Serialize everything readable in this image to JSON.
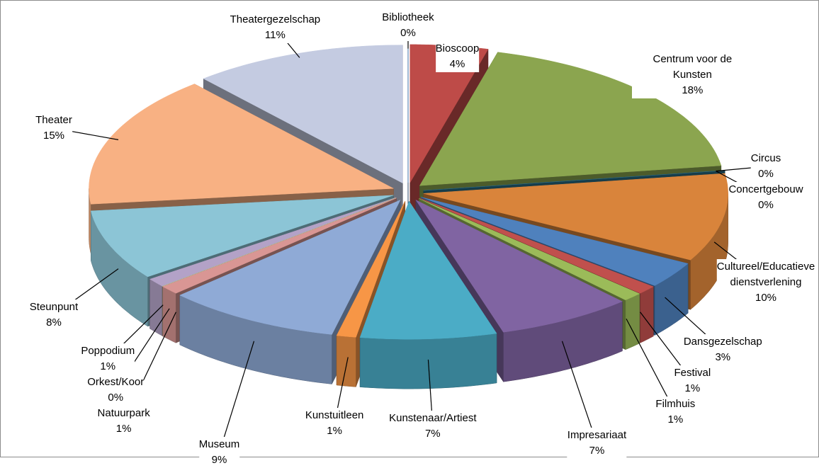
{
  "chart_data": {
    "type": "pie",
    "categories": [
      "Bibliotheek",
      "Bioscoop",
      "Centrum voor de Kunsten",
      "Circus",
      "Concertgebouw",
      "Cultureel/Educatieve dienstverlening",
      "Dansgezelschap",
      "Festival",
      "Filmhuis",
      "Impresariaat",
      "Kunstenaar/Artiest",
      "Kunstuitleen",
      "Museum",
      "Natuurpark",
      "Orkest/Koor",
      "Poppodium",
      "Steunpunt",
      "Theater",
      "Theatergezelschap"
    ],
    "values": [
      0,
      4,
      18,
      0,
      0,
      10,
      3,
      1,
      1,
      7,
      7,
      1,
      9,
      1,
      0,
      1,
      8,
      15,
      11
    ],
    "value_labels": [
      "0%",
      "4%",
      "18%",
      "0%",
      "0%",
      "10%",
      "3%",
      "1%",
      "1%",
      "7%",
      "7%",
      "1%",
      "9%",
      "1%",
      "0%",
      "1%",
      "8%",
      "15%",
      "11%"
    ],
    "colors": [
      "#4a7ebb",
      "#be4b48",
      "#8ba54f",
      "#7d60a0",
      "#2a6f86",
      "#d9843b",
      "#4f81bd",
      "#c0504d",
      "#9bbb59",
      "#8064a2",
      "#4bacc6",
      "#f79646",
      "#8faad6",
      "#d99694",
      "#c3d69b",
      "#b3a2c7",
      "#8cc5d6",
      "#f8b183",
      "#c4cbe1"
    ]
  }
}
